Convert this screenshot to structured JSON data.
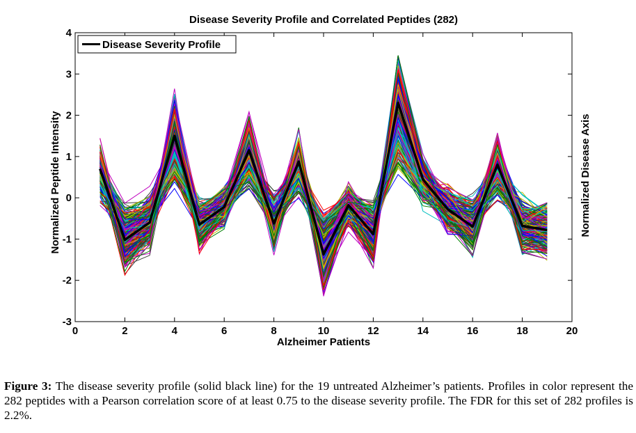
{
  "chart_data": {
    "type": "line",
    "title": "Disease Severity Profile and Correlated Peptides (282)",
    "xlabel": "Alzheimer Patients",
    "ylabel": "Normalized Peptide Intensity",
    "y2label": "Normalized Disease Axis",
    "xlim": [
      0,
      20
    ],
    "ylim": [
      -3,
      4
    ],
    "xticks": [
      0,
      2,
      4,
      6,
      8,
      10,
      12,
      14,
      16,
      18,
      20
    ],
    "yticks": [
      -3,
      -2,
      -1,
      0,
      1,
      2,
      3,
      4
    ],
    "legend_position": "top-left",
    "grid": false,
    "x": [
      1,
      2,
      3,
      4,
      5,
      6,
      7,
      8,
      9,
      10,
      11,
      12,
      13,
      14,
      15,
      16,
      17,
      18,
      19
    ],
    "series": [
      {
        "name": "Disease Severity Profile",
        "color": "#000000",
        "values": [
          0.7,
          -1.02,
          -0.6,
          1.5,
          -0.65,
          -0.22,
          1.15,
          -0.62,
          0.88,
          -1.37,
          -0.18,
          -0.88,
          2.3,
          0.45,
          -0.28,
          -0.7,
          0.8,
          -0.68,
          -0.78
        ]
      }
    ],
    "background_series": {
      "count": 282,
      "palette": [
        "#0000ff",
        "#008000",
        "#ff0000",
        "#00bfbf",
        "#bf00bf",
        "#bfbf00",
        "#3f3f3f"
      ]
    }
  },
  "caption": {
    "label": "Figure 3:",
    "text": " The disease severity profile (solid black line) for the 19 untreated Alzheimer’s patients. Profiles in color represent the 282 peptides with a Pearson correlation score of at least 0.75 to the disease severity profile. The FDR for this set of 282 profiles is 2.2%."
  }
}
